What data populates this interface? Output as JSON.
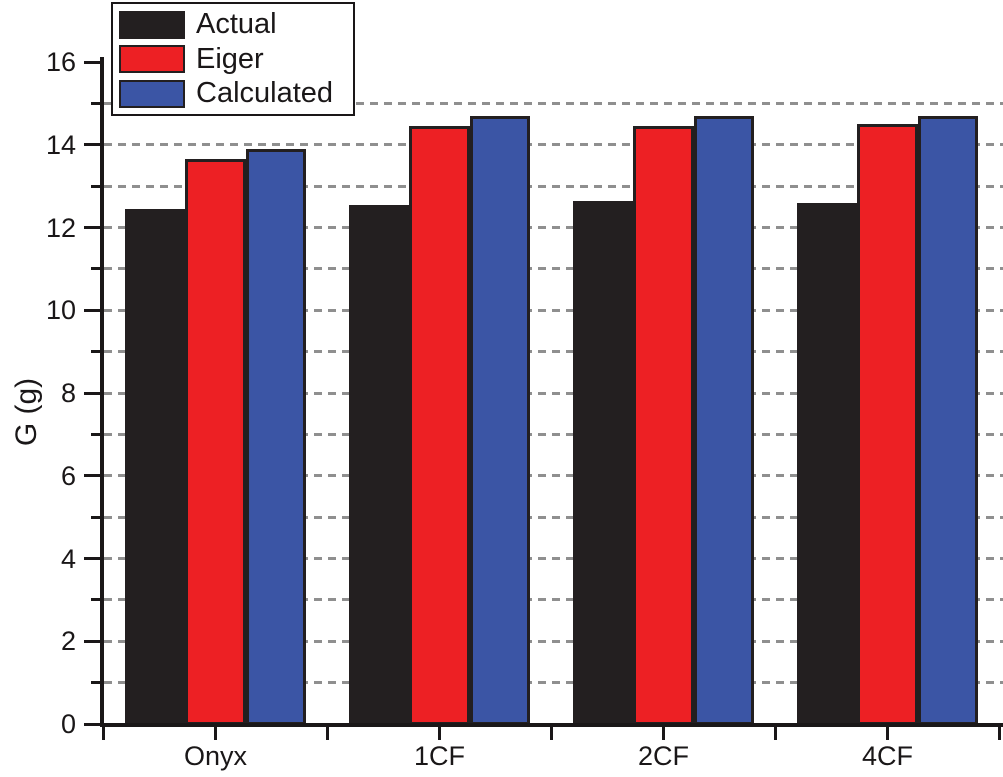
{
  "chart_data": {
    "type": "bar",
    "title": "",
    "xlabel": "",
    "ylabel": "G (g)",
    "categories": [
      "Onyx",
      "1CF",
      "2CF",
      "4CF"
    ],
    "series": [
      {
        "name": "Actual",
        "color": "#231f20",
        "values": [
          12.45,
          12.55,
          12.65,
          12.6
        ]
      },
      {
        "name": "Eiger",
        "color": "#ed2024",
        "values": [
          13.65,
          14.45,
          14.45,
          14.5
        ]
      },
      {
        "name": "Calculated",
        "color": "#3b55a5",
        "values": [
          13.9,
          14.7,
          14.7,
          14.7
        ]
      }
    ],
    "ylim": [
      0,
      16
    ],
    "y_major_ticks": [
      0,
      2,
      4,
      6,
      8,
      10,
      12,
      14,
      16
    ],
    "y_minor_ticks": [
      1,
      3,
      5,
      7,
      9,
      11,
      13,
      15
    ],
    "gridlines_at": [
      1,
      2,
      3,
      4,
      5,
      6,
      7,
      8,
      9,
      10,
      11,
      12,
      13,
      14,
      15
    ],
    "grid_style": "horizontal dashed",
    "grid_color": "#8f8f8f",
    "axis_color": "#1a1718",
    "background_color": "#ffffff",
    "legend_position": "top-left",
    "legend_entries": [
      "Actual",
      "Eiger",
      "Calculated"
    ]
  }
}
